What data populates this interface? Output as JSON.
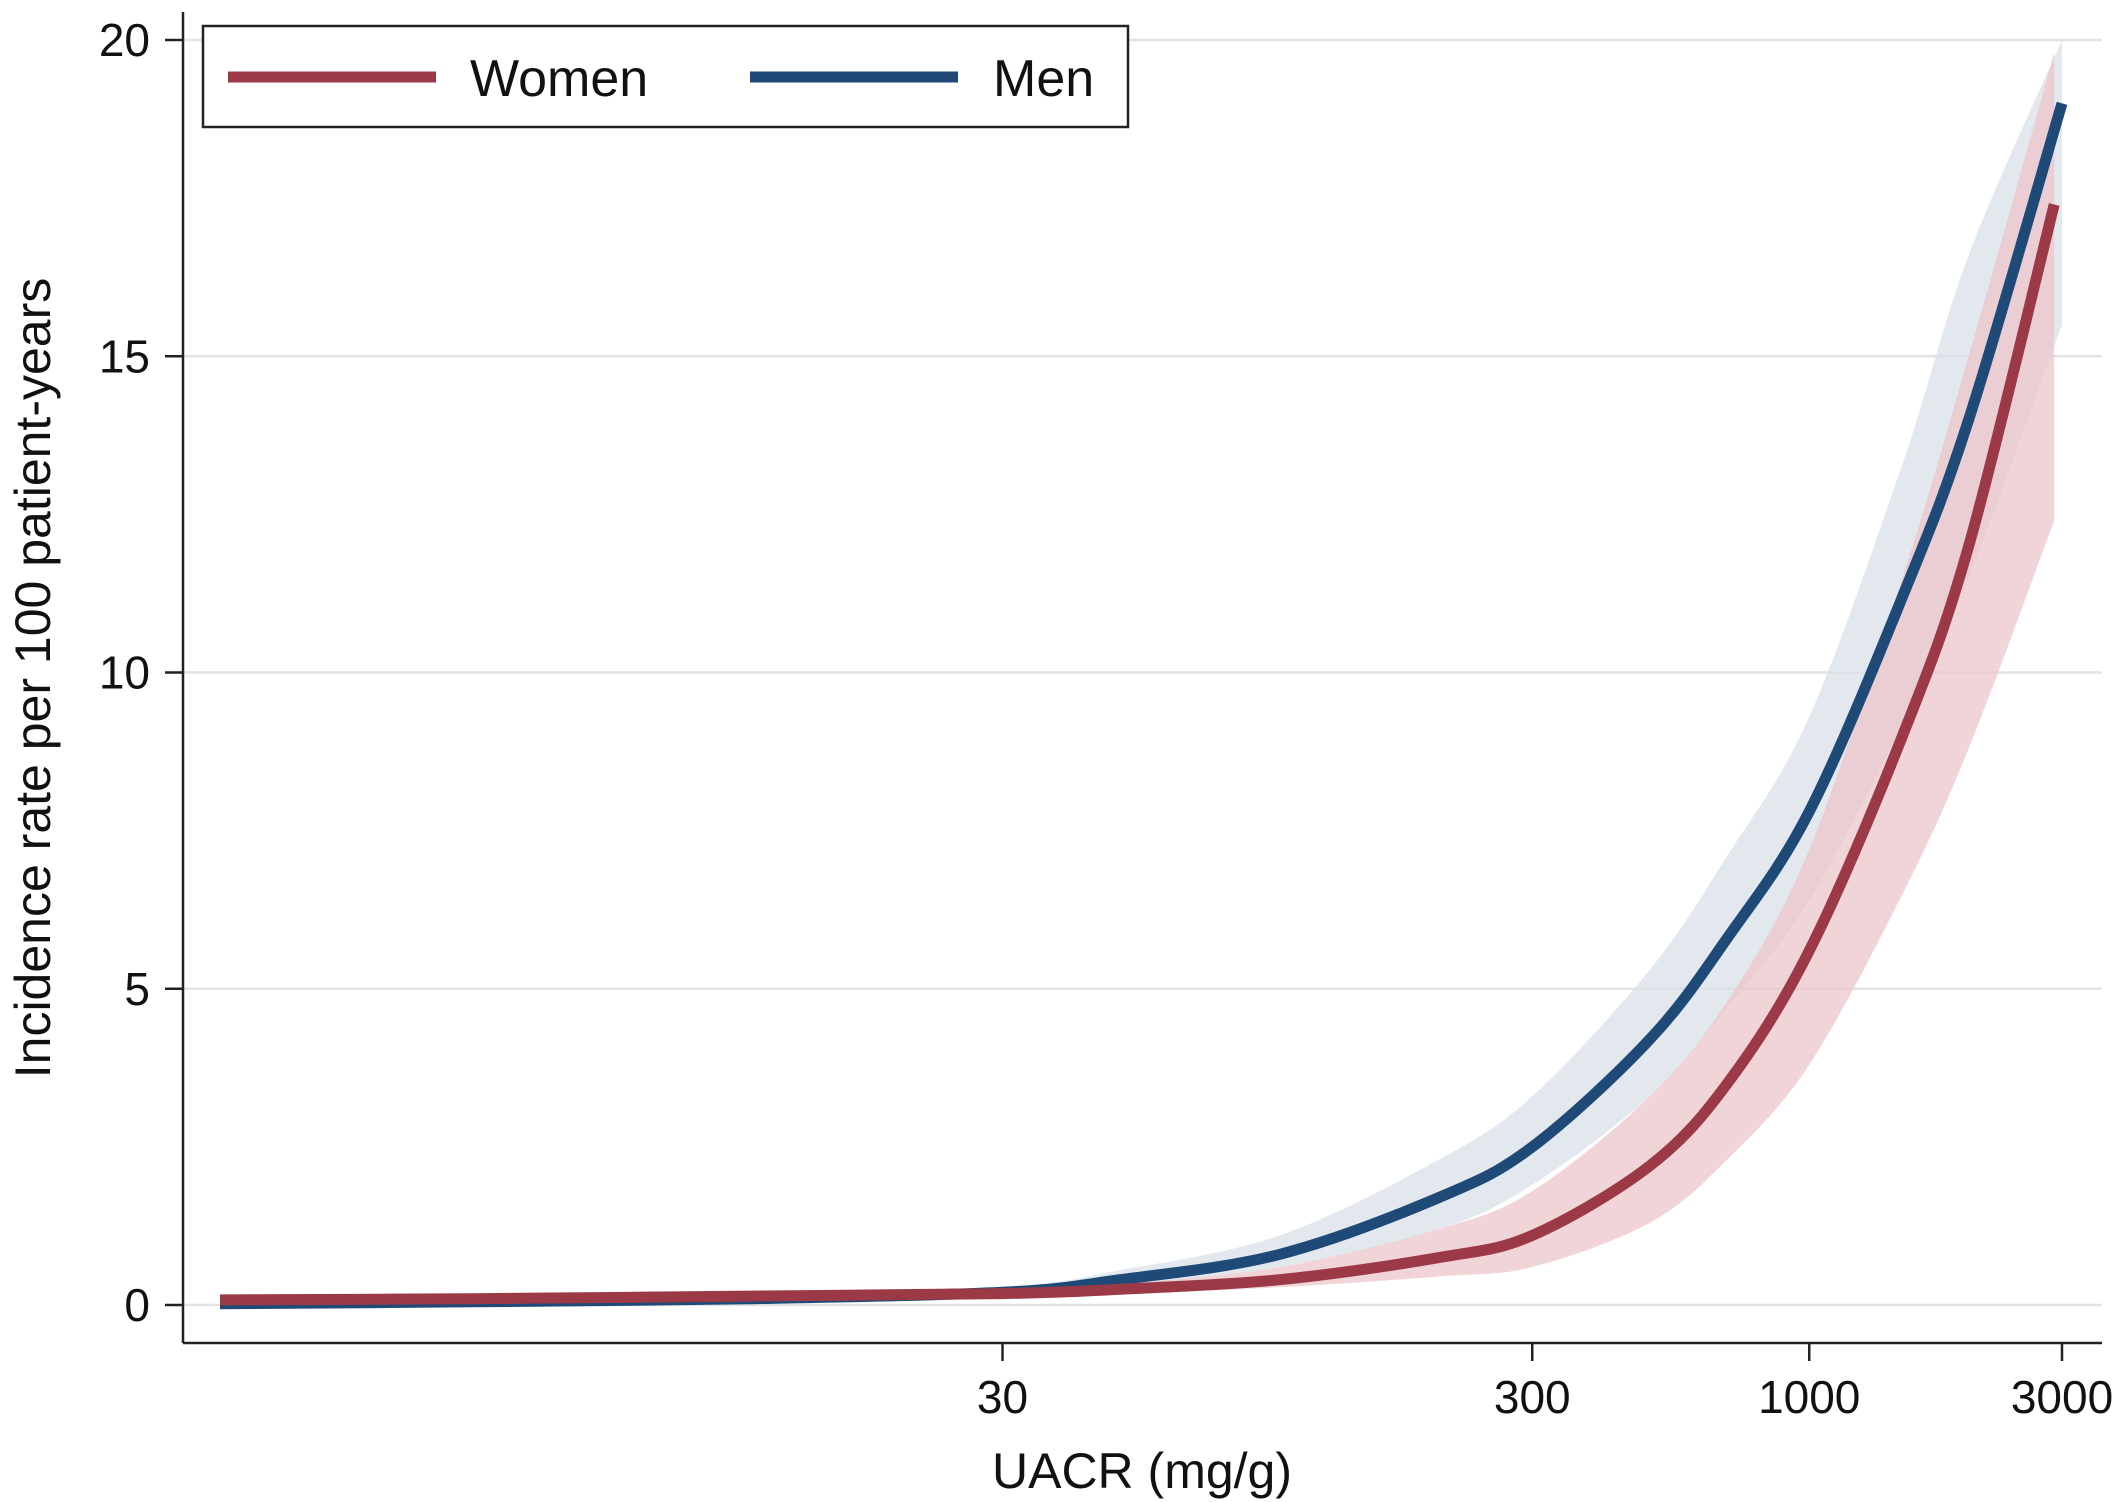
{
  "chart_data": {
    "type": "line",
    "title": "",
    "xlabel": "UACR (mg/g)",
    "ylabel": "Incidence rate per 100 patient-years",
    "x_scale": "log",
    "xlim": [
      1,
      3000
    ],
    "ylim": [
      0,
      20
    ],
    "xticks": [
      30,
      300,
      1000,
      3000
    ],
    "yticks": [
      0,
      5,
      10,
      15,
      20
    ],
    "grid": true,
    "legend_position": "top-left",
    "series": [
      {
        "name": "Women",
        "color": "#9b3a46",
        "band_color": "#ecc6ca",
        "points": [
          {
            "x": 1,
            "y": 0.08,
            "lo": 0.05,
            "hi": 0.12
          },
          {
            "x": 3,
            "y": 0.1,
            "lo": 0.07,
            "hi": 0.14
          },
          {
            "x": 10,
            "y": 0.14,
            "lo": 0.1,
            "hi": 0.18
          },
          {
            "x": 30,
            "y": 0.18,
            "lo": 0.14,
            "hi": 0.24
          },
          {
            "x": 50,
            "y": 0.25,
            "lo": 0.18,
            "hi": 0.33
          },
          {
            "x": 100,
            "y": 0.4,
            "lo": 0.28,
            "hi": 0.6
          },
          {
            "x": 200,
            "y": 0.75,
            "lo": 0.45,
            "hi": 1.2
          },
          {
            "x": 300,
            "y": 1.1,
            "lo": 0.6,
            "hi": 1.8
          },
          {
            "x": 500,
            "y": 2.2,
            "lo": 1.3,
            "hi": 3.3
          },
          {
            "x": 700,
            "y": 3.5,
            "lo": 2.3,
            "hi": 4.8
          },
          {
            "x": 1000,
            "y": 5.6,
            "lo": 3.8,
            "hi": 7.2
          },
          {
            "x": 1500,
            "y": 9.0,
            "lo": 6.5,
            "hi": 11.5
          },
          {
            "x": 2000,
            "y": 12.0,
            "lo": 8.8,
            "hi": 15.0
          },
          {
            "x": 2900,
            "y": 17.4,
            "lo": 12.4,
            "hi": 19.8
          }
        ]
      },
      {
        "name": "Men",
        "color": "#1f4a78",
        "band_color": "#d9e0e8",
        "points": [
          {
            "x": 1,
            "y": 0.02,
            "lo": 0.01,
            "hi": 0.05
          },
          {
            "x": 3,
            "y": 0.05,
            "lo": 0.03,
            "hi": 0.08
          },
          {
            "x": 10,
            "y": 0.1,
            "lo": 0.07,
            "hi": 0.14
          },
          {
            "x": 30,
            "y": 0.2,
            "lo": 0.15,
            "hi": 0.28
          },
          {
            "x": 50,
            "y": 0.4,
            "lo": 0.3,
            "hi": 0.55
          },
          {
            "x": 100,
            "y": 0.8,
            "lo": 0.6,
            "hi": 1.1
          },
          {
            "x": 200,
            "y": 1.7,
            "lo": 1.2,
            "hi": 2.3
          },
          {
            "x": 300,
            "y": 2.5,
            "lo": 1.9,
            "hi": 3.3
          },
          {
            "x": 500,
            "y": 4.2,
            "lo": 3.3,
            "hi": 5.3
          },
          {
            "x": 700,
            "y": 5.8,
            "lo": 4.7,
            "hi": 7.1
          },
          {
            "x": 1000,
            "y": 7.8,
            "lo": 6.4,
            "hi": 9.3
          },
          {
            "x": 1500,
            "y": 11.2,
            "lo": 9.2,
            "hi": 13.3
          },
          {
            "x": 2000,
            "y": 14.0,
            "lo": 11.5,
            "hi": 16.6
          },
          {
            "x": 3000,
            "y": 19.0,
            "lo": 15.5,
            "hi": 20.0
          }
        ]
      }
    ]
  }
}
